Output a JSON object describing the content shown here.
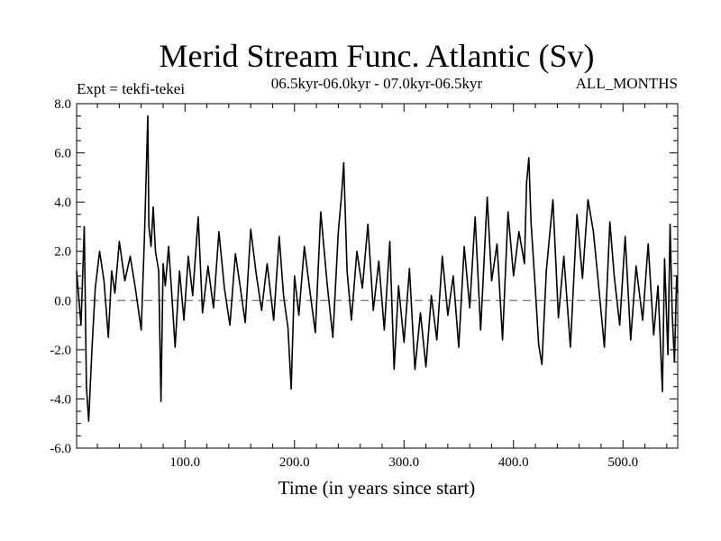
{
  "chart_data": {
    "type": "line",
    "title": "Merid Stream Func. Atlantic (Sv)",
    "subtitle": "06.5kyr-06.0kyr - 07.0kyr-06.5kyr",
    "experiment_label": "Expt = tekfi-tekei",
    "season_label": "ALL_MONTHS",
    "xlabel": "Time (in years since start)",
    "ylabel": "",
    "xlim": [
      1,
      550
    ],
    "ylim": [
      -6.0,
      8.0
    ],
    "x_ticks": [
      100.0,
      200.0,
      300.0,
      400.0,
      500.0
    ],
    "x_tick_labels": [
      "100.0",
      "200.0",
      "300.0",
      "400.0",
      "500.0"
    ],
    "y_ticks": [
      -6.0,
      -4.0,
      -2.0,
      0.0,
      2.0,
      4.0,
      6.0,
      8.0
    ],
    "y_tick_labels": [
      "-6.0",
      "-4.0",
      "-2.0",
      "0.0",
      "2.0",
      "4.0",
      "6.0",
      "8.0"
    ],
    "zero_line": true,
    "series": [
      {
        "name": "Merid Stream Func. Atlantic",
        "x": [
          1,
          5,
          8,
          10,
          12,
          15,
          18,
          22,
          26,
          30,
          33,
          36,
          40,
          45,
          50,
          55,
          60,
          63,
          66,
          67,
          69,
          71,
          73,
          76,
          78,
          80,
          82,
          85,
          88,
          91,
          95,
          99,
          103,
          107,
          112,
          116,
          121,
          126,
          131,
          136,
          141,
          146,
          150,
          155,
          160,
          165,
          170,
          175,
          181,
          186,
          190,
          194,
          197,
          200,
          204,
          209,
          214,
          219,
          224,
          230,
          235,
          240,
          243,
          245,
          248,
          252,
          257,
          262,
          267,
          272,
          277,
          282,
          287,
          291,
          295,
          300,
          305,
          310,
          315,
          320,
          325,
          330,
          335,
          340,
          345,
          350,
          355,
          360,
          365,
          370,
          376,
          380,
          385,
          390,
          395,
          400,
          405,
          410,
          412,
          414,
          416,
          420,
          423,
          426,
          430,
          436,
          441,
          446,
          452,
          458,
          463,
          468,
          473,
          478,
          483,
          488,
          492,
          497,
          502,
          507,
          512,
          518,
          523,
          528,
          532,
          536,
          538,
          541,
          543,
          545,
          547,
          549,
          550
        ],
        "values": [
          1.2,
          -1.0,
          3.0,
          -3.5,
          -4.9,
          -2.0,
          0.5,
          2.0,
          0.8,
          -1.5,
          1.2,
          0.3,
          2.4,
          0.8,
          1.8,
          0.4,
          -1.2,
          2.6,
          7.5,
          3.0,
          2.2,
          3.8,
          2.0,
          1.2,
          -4.1,
          1.5,
          0.6,
          2.2,
          0.2,
          -1.9,
          1.2,
          -0.8,
          1.8,
          0.2,
          3.4,
          -0.5,
          1.4,
          -0.3,
          2.8,
          0.5,
          -1.0,
          1.9,
          0.7,
          -0.9,
          2.9,
          1.1,
          -0.4,
          1.5,
          -0.8,
          2.6,
          0.2,
          -1.1,
          -3.6,
          1.0,
          -0.6,
          2.2,
          0.4,
          -1.3,
          3.6,
          0.6,
          -1.5,
          2.8,
          4.3,
          5.6,
          1.2,
          -0.8,
          2.0,
          0.5,
          3.1,
          -0.4,
          1.6,
          -1.2,
          2.4,
          -2.8,
          0.6,
          -1.7,
          1.3,
          -2.8,
          -0.5,
          -2.7,
          0.2,
          -1.6,
          1.8,
          -0.6,
          1.0,
          -1.9,
          2.2,
          -0.3,
          3.4,
          -1.2,
          4.2,
          0.8,
          2.3,
          -1.6,
          3.6,
          1.0,
          2.8,
          1.5,
          4.8,
          5.8,
          3.2,
          0.4,
          -1.8,
          -2.6,
          1.2,
          4.1,
          -0.7,
          1.8,
          -1.9,
          3.5,
          0.9,
          4.1,
          2.8,
          0.5,
          -1.9,
          3.2,
          1.0,
          -1.0,
          2.6,
          -1.6,
          1.4,
          -0.8,
          2.3,
          -1.4,
          0.6,
          -3.7,
          1.7,
          -2.2,
          3.1,
          -0.6,
          -2.5,
          1.0,
          0.3
        ]
      }
    ]
  }
}
